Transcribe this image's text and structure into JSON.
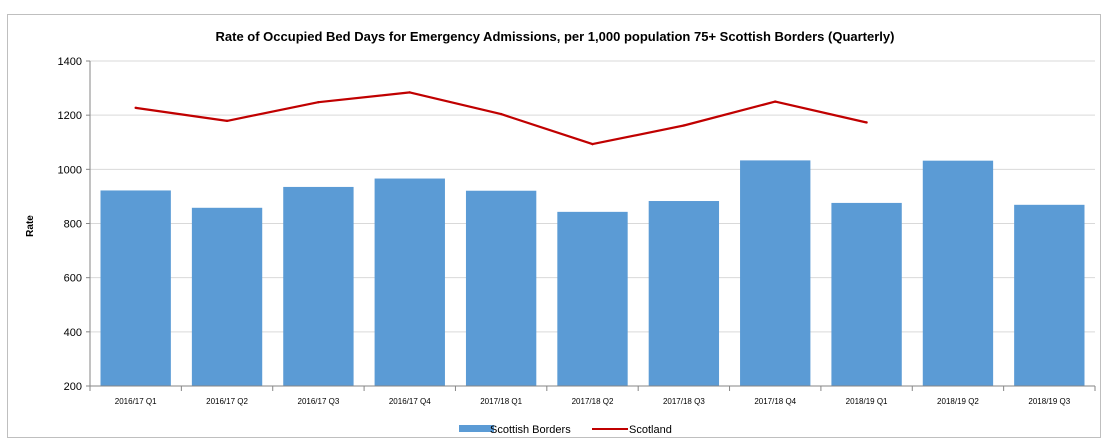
{
  "chart_data": {
    "type": "bar",
    "title": "Rate of Occupied Bed Days for Emergency Admissions, per 1,000 population 75+ Scottish Borders (Quarterly)",
    "xlabel": "",
    "ylabel": "Rate",
    "ylim": [
      200,
      1400
    ],
    "yticks": [
      "200",
      "400",
      "600",
      "800",
      "1000",
      "1200",
      "1400"
    ],
    "grid": true,
    "legend_position": "bottom",
    "categories": [
      "2016/17 Q1",
      "2016/17 Q2",
      "2016/17 Q3",
      "2016/17 Q4",
      "2017/18 Q1",
      "2017/18 Q2",
      "2017/18 Q3",
      "2017/18 Q4",
      "2018/19 Q1",
      "2018/19 Q2",
      "2018/19 Q3"
    ],
    "series": [
      {
        "name": "Scottish Borders",
        "type": "bar",
        "color": "#5b9bd5",
        "values": [
          922,
          858,
          935,
          966,
          921,
          843,
          883,
          1033,
          876,
          1032,
          869
        ]
      },
      {
        "name": "Scotland",
        "type": "line",
        "color": "#c00000",
        "values": [
          1227,
          1179,
          1248,
          1284,
          1204,
          1093,
          1162,
          1250,
          1173,
          null,
          null
        ]
      }
    ]
  }
}
